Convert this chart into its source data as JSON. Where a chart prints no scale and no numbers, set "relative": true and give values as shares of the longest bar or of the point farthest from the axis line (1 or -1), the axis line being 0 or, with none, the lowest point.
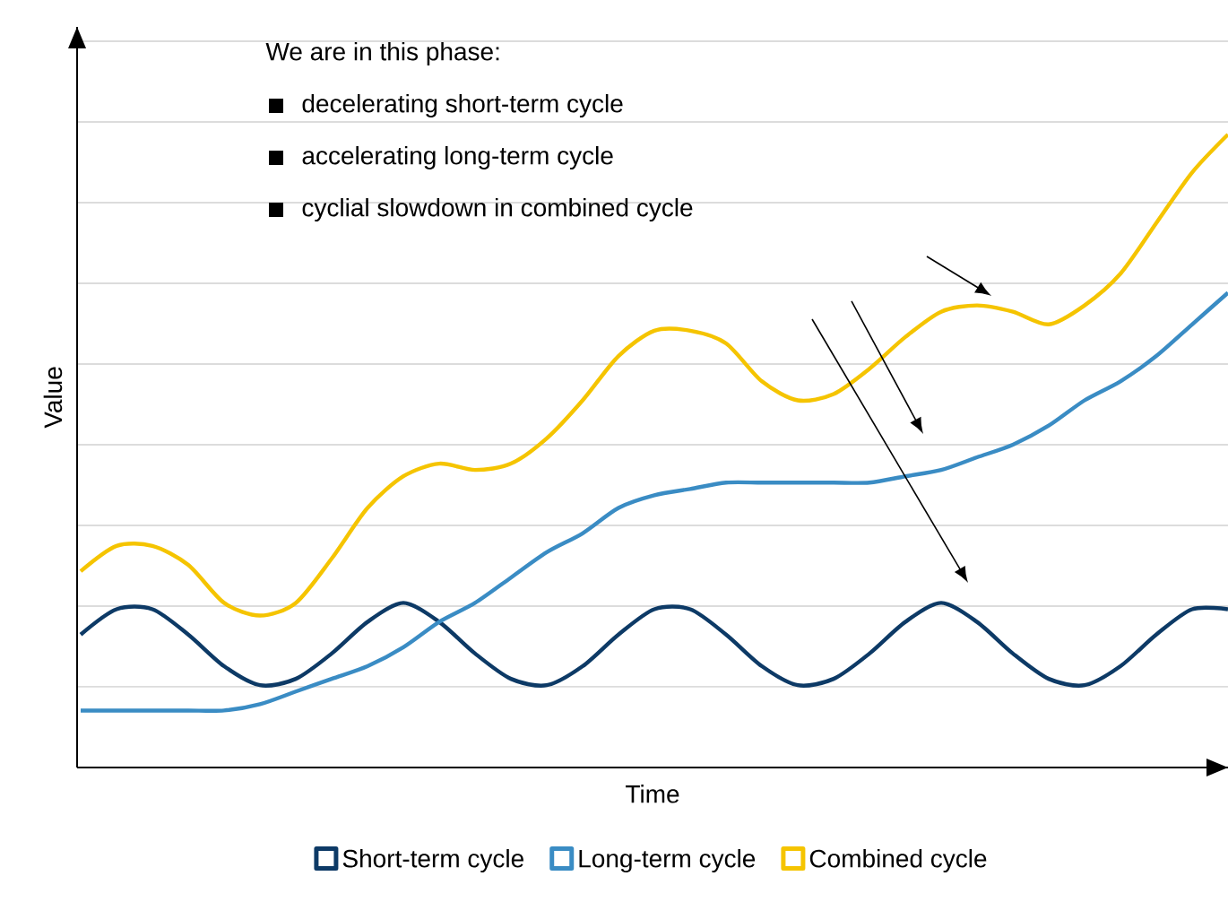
{
  "chart_data": {
    "type": "line",
    "relative": true,
    "xlabel": "Time",
    "ylabel": "Value",
    "grid": "y",
    "legend": "bottom",
    "categories": [
      null,
      null,
      null,
      null,
      null,
      null,
      null,
      null,
      null,
      null,
      null,
      null,
      null,
      null,
      null,
      null,
      null,
      null,
      null,
      null,
      null,
      null,
      null,
      null,
      null,
      null,
      null,
      null,
      null,
      null,
      null,
      null,
      null
    ],
    "series": [
      {
        "name": "Short-term cycle",
        "color": "#0d3a66",
        "values": [
          0.21,
          0.25,
          0.25,
          0.21,
          0.16,
          0.13,
          0.14,
          0.18,
          0.23,
          0.26,
          0.23,
          0.18,
          0.14,
          0.13,
          0.16,
          0.21,
          0.25,
          0.25,
          0.21,
          0.16,
          0.13,
          0.14,
          0.18,
          0.23,
          0.26,
          0.23,
          0.18,
          0.14,
          0.13,
          0.16,
          0.21,
          0.25,
          0.25
        ]
      },
      {
        "name": "Long-term cycle",
        "color": "#3a8cc4",
        "values": [
          0.09,
          0.09,
          0.09,
          0.09,
          0.09,
          0.1,
          0.12,
          0.14,
          0.16,
          0.19,
          0.23,
          0.26,
          0.3,
          0.34,
          0.37,
          0.41,
          0.43,
          0.44,
          0.45,
          0.45,
          0.45,
          0.45,
          0.45,
          0.46,
          0.47,
          0.49,
          0.51,
          0.54,
          0.58,
          0.61,
          0.65,
          0.7,
          0.75
        ]
      },
      {
        "name": "Combined cycle",
        "color": "#f5c400",
        "values": [
          0.31,
          0.35,
          0.35,
          0.32,
          0.26,
          0.24,
          0.26,
          0.33,
          0.41,
          0.46,
          0.48,
          0.47,
          0.48,
          0.52,
          0.58,
          0.65,
          0.69,
          0.69,
          0.67,
          0.61,
          0.58,
          0.59,
          0.63,
          0.68,
          0.72,
          0.73,
          0.72,
          0.7,
          0.73,
          0.78,
          0.86,
          0.94,
          1.0
        ]
      }
    ],
    "annotations": [
      "We are in this phase:",
      "decelerating short-term cycle",
      "accelerating long-term cycle",
      "cyclial slowdown in combined cycle"
    ]
  }
}
